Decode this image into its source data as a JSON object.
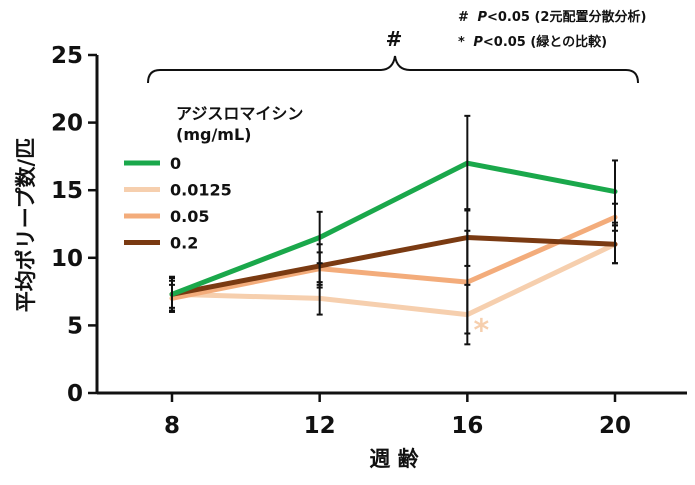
{
  "chart_data": {
    "type": "line",
    "ylabel": "平均ポリープ数/匹",
    "xlabel": "週 齢",
    "x": [
      8,
      12,
      16,
      20
    ],
    "xticks": [
      "8",
      "12",
      "16",
      "20"
    ],
    "ylim": [
      0,
      25
    ],
    "yticks": [
      "0",
      "5",
      "10",
      "15",
      "20",
      "25"
    ],
    "grid": false,
    "legend_title": [
      "アジスロマイシン",
      "(mg/mL)"
    ],
    "legend_position": "upper-left",
    "series": [
      {
        "name": "0",
        "color": "#1aa84b",
        "values": [
          7.3,
          11.5,
          17.0,
          14.9
        ],
        "err": [
          1.3,
          1.9,
          3.5,
          2.3
        ]
      },
      {
        "name": "0.0125",
        "color": "#f6cfae",
        "values": [
          7.3,
          7.0,
          5.8,
          11.0
        ],
        "err": [
          1.2,
          1.2,
          2.2,
          1.4
        ]
      },
      {
        "name": "0.05",
        "color": "#f3ac7b",
        "values": [
          7.0,
          9.2,
          8.2,
          13.0
        ],
        "err": [
          1.0,
          1.2,
          3.8,
          1.0
        ]
      },
      {
        "name": "0.2",
        "color": "#7a3a12",
        "values": [
          7.3,
          9.4,
          11.5,
          11.0
        ],
        "err": [
          1.0,
          1.6,
          2.1,
          1.4
        ]
      }
    ],
    "annotations": {
      "bracket_symbol": "#",
      "asterisk_symbol": "*",
      "asterisk_color": "#f6cfae",
      "asterisk_series": "0.0125",
      "asterisk_x": 16,
      "notes": [
        {
          "symbol": "#",
          "p": "P",
          "text": "<0.05 (2元配置分散分析)"
        },
        {
          "symbol": "*",
          "p": "P",
          "text": "<0.05 (緑との比較)"
        }
      ]
    }
  }
}
